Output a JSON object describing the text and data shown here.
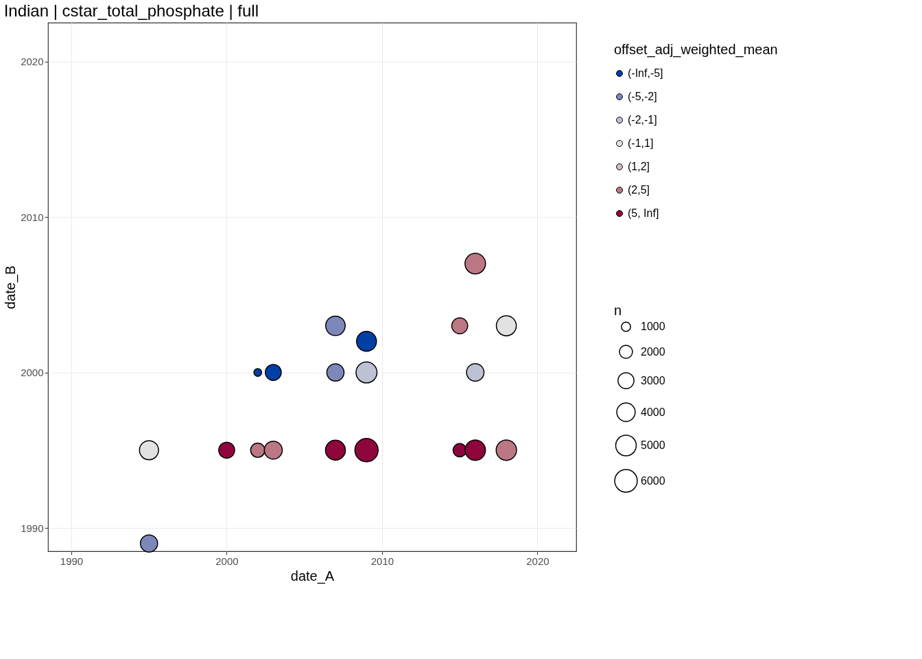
{
  "chart_data": {
    "type": "bubble",
    "title": "Indian | cstar_total_phosphate | full",
    "xlabel": "date_A",
    "ylabel": "date_B",
    "legend_title": [
      "offset_adj_weighted_mean",
      "n"
    ],
    "xlim": [
      1988.5,
      2022.5
    ],
    "ylim": [
      1988.5,
      2022.5
    ],
    "xticks": [
      1990,
      2000,
      2010,
      2020
    ],
    "yticks": [
      1990,
      2000,
      2010,
      2020
    ],
    "grid": true,
    "legend": "right",
    "marker": "circle",
    "size_legend": [
      1000,
      2000,
      3000,
      4000,
      5000,
      6000
    ],
    "series": [
      {
        "name": "(-Inf,-5]",
        "color": "#023fa5",
        "x": [
          2002,
          2003,
          2009
        ],
        "values": [
          2000,
          2000,
          2002
        ],
        "sizes": [
          700,
          3000,
          4700
        ]
      },
      {
        "name": "(-5,-2]",
        "color": "#7d87b9",
        "x": [
          1995,
          2007,
          2007
        ],
        "values": [
          1989,
          2003,
          2000
        ],
        "sizes": [
          3500,
          4500,
          3500
        ]
      },
      {
        "name": "(-2,-1]",
        "color": "#bec1d4",
        "x": [
          2009,
          2016
        ],
        "values": [
          2000,
          2000
        ],
        "sizes": [
          5200,
          3600
        ]
      },
      {
        "name": "(-1,1]",
        "color": "#e2e2e2",
        "x": [
          1995,
          2018
        ],
        "values": [
          1995,
          2003
        ],
        "sizes": [
          4300,
          4700
        ]
      },
      {
        "name": "(1,2]",
        "color": "#d6bcc0"
      },
      {
        "name": "(2,5]",
        "color": "#bb7784",
        "x": [
          2002,
          2003,
          2015,
          2016,
          2018
        ],
        "values": [
          1995,
          1995,
          2003,
          2007,
          1995
        ],
        "sizes": [
          2400,
          3800,
          3000,
          5000,
          4900
        ]
      },
      {
        "name": "(5, Inf]",
        "color": "#8e063b",
        "x": [
          2000,
          2007,
          2009,
          2015,
          2016
        ],
        "values": [
          1995,
          1995,
          1995,
          1995,
          1995
        ],
        "sizes": [
          3000,
          4700,
          6400,
          2100,
          4900
        ]
      }
    ]
  }
}
